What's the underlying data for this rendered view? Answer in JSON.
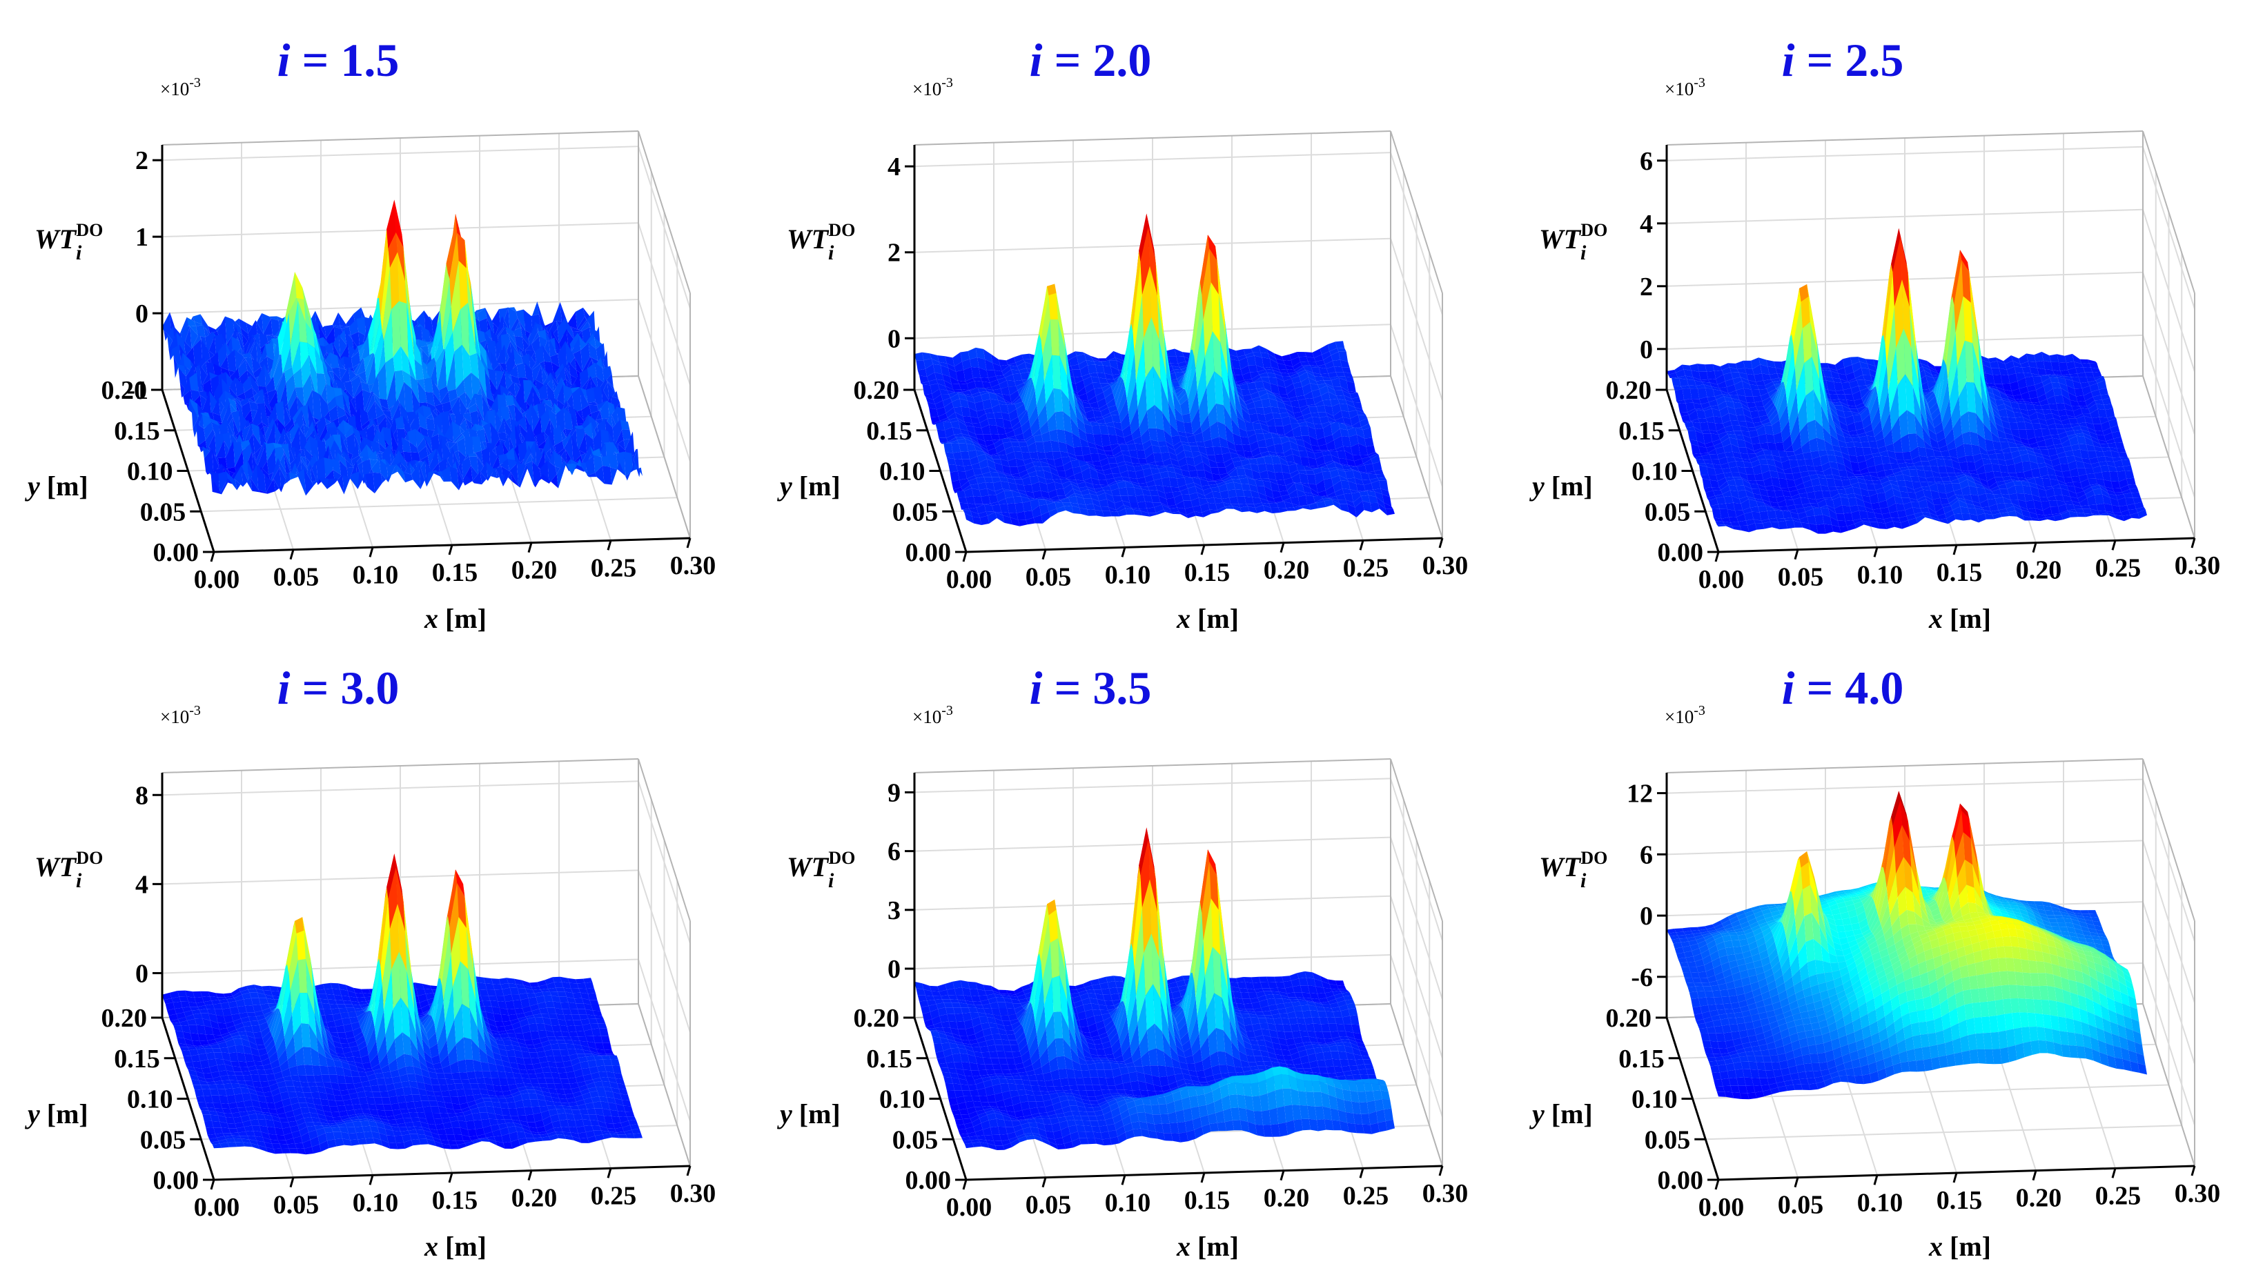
{
  "chart_data": [
    {
      "type": "surface3d",
      "title_var": "i",
      "title_value": "1.5",
      "zlabel_main": "WT",
      "zlabel_sub": "i",
      "zlabel_sup": "DO",
      "xlabel_var": "x",
      "xlabel_unit": "[m]",
      "ylabel_var": "y",
      "ylabel_unit": "[m]",
      "z_multiplier": "×10-3",
      "z_multiplier_base": "×10",
      "z_multiplier_exp": "-3",
      "xlim": [
        0,
        0.3
      ],
      "ylim": [
        0,
        0.2
      ],
      "zlim": [
        -1,
        2.2
      ],
      "x_ticks": [
        "0.00",
        "0.05",
        "0.10",
        "0.15",
        "0.20",
        "0.25",
        "0.30"
      ],
      "y_ticks": [
        "0.00",
        "0.05",
        "0.10",
        "0.15",
        "0.20"
      ],
      "z_tick_values": [
        -1,
        0,
        1,
        2
      ],
      "z_ticks": [
        "-1",
        "0",
        "1",
        "2"
      ],
      "floor_level": -0.15,
      "noise": 0.17,
      "smooth": 0,
      "peaks": [
        {
          "x": 0.075,
          "y": 0.13,
          "height": 1.2
        },
        {
          "x": 0.135,
          "y": 0.13,
          "height": 2.0
        },
        {
          "x": 0.175,
          "y": 0.13,
          "height": 1.85
        }
      ],
      "ridge": null
    },
    {
      "type": "surface3d",
      "title_var": "i",
      "title_value": "2.0",
      "zlabel_main": "WT",
      "zlabel_sub": "i",
      "zlabel_sup": "DO",
      "xlabel_var": "x",
      "xlabel_unit": "[m]",
      "ylabel_var": "y",
      "ylabel_unit": "[m]",
      "z_multiplier": "×10-3",
      "z_multiplier_base": "×10",
      "z_multiplier_exp": "-3",
      "xlim": [
        0,
        0.3
      ],
      "ylim": [
        0,
        0.2
      ],
      "zlim": [
        -1.2,
        4.5
      ],
      "x_ticks": [
        "0.00",
        "0.05",
        "0.10",
        "0.15",
        "0.20",
        "0.25",
        "0.30"
      ],
      "y_ticks": [
        "0.00",
        "0.05",
        "0.10",
        "0.15",
        "0.20"
      ],
      "z_tick_values": [
        0,
        2,
        4
      ],
      "z_ticks": [
        "0",
        "2",
        "4"
      ],
      "floor_level": -0.5,
      "noise": 0.22,
      "smooth": 1,
      "peaks": [
        {
          "x": 0.075,
          "y": 0.13,
          "height": 2.6
        },
        {
          "x": 0.135,
          "y": 0.13,
          "height": 4.0
        },
        {
          "x": 0.175,
          "y": 0.13,
          "height": 3.6
        }
      ],
      "ridge": null
    },
    {
      "type": "surface3d",
      "title_var": "i",
      "title_value": "2.5",
      "zlabel_main": "WT",
      "zlabel_sub": "i",
      "zlabel_sup": "DO",
      "xlabel_var": "x",
      "xlabel_unit": "[m]",
      "ylabel_var": "y",
      "ylabel_unit": "[m]",
      "z_multiplier": "×10-3",
      "z_multiplier_base": "×10",
      "z_multiplier_exp": "-3",
      "xlim": [
        0,
        0.3
      ],
      "ylim": [
        0,
        0.2
      ],
      "zlim": [
        -1.3,
        6.5
      ],
      "x_ticks": [
        "0.00",
        "0.05",
        "0.10",
        "0.15",
        "0.20",
        "0.25",
        "0.30"
      ],
      "y_ticks": [
        "0.00",
        "0.05",
        "0.10",
        "0.15",
        "0.20"
      ],
      "z_tick_values": [
        0,
        2,
        4,
        6
      ],
      "z_ticks": [
        "0",
        "2",
        "4",
        "6"
      ],
      "floor_level": -0.6,
      "noise": 0.25,
      "smooth": 1,
      "peaks": [
        {
          "x": 0.075,
          "y": 0.13,
          "height": 3.9
        },
        {
          "x": 0.135,
          "y": 0.13,
          "height": 5.4
        },
        {
          "x": 0.175,
          "y": 0.13,
          "height": 4.9
        }
      ],
      "ridge": null
    },
    {
      "type": "surface3d",
      "title_var": "i",
      "title_value": "3.0",
      "zlabel_main": "WT",
      "zlabel_sub": "i",
      "zlabel_sup": "DO",
      "xlabel_var": "x",
      "xlabel_unit": "[m]",
      "ylabel_var": "y",
      "ylabel_unit": "[m]",
      "z_multiplier": "×10-3",
      "z_multiplier_base": "×10",
      "z_multiplier_exp": "-3",
      "xlim": [
        0,
        0.3
      ],
      "ylim": [
        0,
        0.2
      ],
      "zlim": [
        -2.0,
        9.0
      ],
      "x_ticks": [
        "0.00",
        "0.05",
        "0.10",
        "0.15",
        "0.20",
        "0.25",
        "0.30"
      ],
      "y_ticks": [
        "0.00",
        "0.05",
        "0.10",
        "0.15",
        "0.20"
      ],
      "z_tick_values": [
        0,
        4,
        8
      ],
      "z_ticks": [
        "0",
        "4",
        "8"
      ],
      "floor_level": -0.8,
      "noise": 0.3,
      "smooth": 2,
      "peaks": [
        {
          "x": 0.075,
          "y": 0.13,
          "height": 5.0
        },
        {
          "x": 0.135,
          "y": 0.13,
          "height": 7.6
        },
        {
          "x": 0.175,
          "y": 0.13,
          "height": 6.8
        }
      ],
      "ridge": null
    },
    {
      "type": "surface3d",
      "title_var": "i",
      "title_value": "3.5",
      "zlabel_main": "WT",
      "zlabel_sub": "i",
      "zlabel_sup": "DO",
      "xlabel_var": "x",
      "xlabel_unit": "[m]",
      "ylabel_var": "y",
      "ylabel_unit": "[m]",
      "z_multiplier": "×10-3",
      "z_multiplier_base": "×10",
      "z_multiplier_exp": "-3",
      "xlim": [
        0,
        0.3
      ],
      "ylim": [
        0,
        0.2
      ],
      "zlim": [
        -2.5,
        10.0
      ],
      "x_ticks": [
        "0.00",
        "0.05",
        "0.10",
        "0.15",
        "0.20",
        "0.25",
        "0.30"
      ],
      "y_ticks": [
        "0.00",
        "0.05",
        "0.10",
        "0.15",
        "0.20"
      ],
      "z_tick_values": [
        0,
        3,
        6,
        9
      ],
      "z_ticks": [
        "0",
        "3",
        "6",
        "9"
      ],
      "floor_level": -0.9,
      "noise": 0.35,
      "smooth": 2,
      "peaks": [
        {
          "x": 0.075,
          "y": 0.13,
          "height": 6.6
        },
        {
          "x": 0.135,
          "y": 0.13,
          "height": 9.6
        },
        {
          "x": 0.175,
          "y": 0.13,
          "height": 8.7
        }
      ],
      "ridge": {
        "x": 0.2,
        "y": 0.03,
        "height": 2.2,
        "sx": 0.06,
        "sy": 0.015
      }
    },
    {
      "type": "surface3d",
      "title_var": "i",
      "title_value": "4.0",
      "zlabel_main": "WT",
      "zlabel_sub": "i",
      "zlabel_sup": "DO",
      "xlabel_var": "x",
      "xlabel_unit": "[m]",
      "ylabel_var": "y",
      "ylabel_unit": "[m]",
      "z_multiplier": "×10-3",
      "z_multiplier_base": "×10",
      "z_multiplier_exp": "-3",
      "xlim": [
        0,
        0.3
      ],
      "ylim": [
        0,
        0.2
      ],
      "zlim": [
        -10.0,
        14.0
      ],
      "x_ticks": [
        "0.00",
        "0.05",
        "0.10",
        "0.15",
        "0.20",
        "0.25",
        "0.30"
      ],
      "y_ticks": [
        "0.00",
        "0.05",
        "0.10",
        "0.15",
        "0.20"
      ],
      "z_tick_values": [
        -6,
        0,
        6,
        12
      ],
      "z_ticks": [
        "-6",
        "0",
        "6",
        "12"
      ],
      "floor_level": -2.0,
      "noise": 0.5,
      "smooth": 3,
      "peaks": [
        {
          "x": 0.075,
          "y": 0.13,
          "height": 7.5
        },
        {
          "x": 0.135,
          "y": 0.13,
          "height": 10.5
        },
        {
          "x": 0.175,
          "y": 0.13,
          "height": 9.5
        }
      ],
      "ridge": {
        "x": 0.19,
        "y": 0.06,
        "height": 10.0,
        "sx": 0.07,
        "sy": 0.04
      },
      "hump": {
        "x": 0.14,
        "y": 0.16,
        "height": 6.0,
        "sx": 0.08,
        "sy": 0.05
      }
    }
  ]
}
